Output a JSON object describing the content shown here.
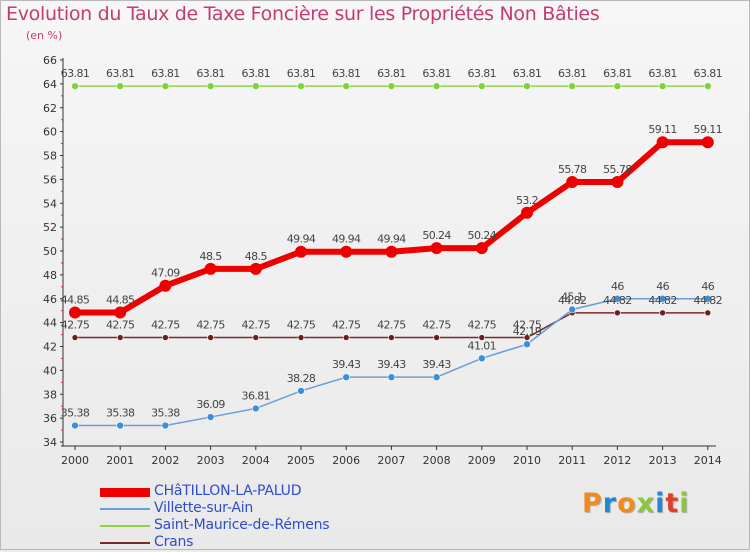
{
  "title": "Evolution du Taux de Taxe Foncière sur les Propriétés Non Bâties",
  "subtitle": "(en %)",
  "logo": {
    "text": "Proxiti",
    "letters": [
      "P",
      "r",
      "o",
      "x",
      "i",
      "t",
      "i"
    ]
  },
  "chart_data": {
    "type": "line",
    "title": "Evolution du Taux de Taxe Foncière sur les Propriétés Non Bâties",
    "ylabel": "(en %)",
    "xlabel": "",
    "grid": false,
    "ylim": [
      34,
      66
    ],
    "yticks": [
      "34",
      "36",
      "38",
      "40",
      "42",
      "44",
      "46",
      "48",
      "50",
      "52",
      "54",
      "56",
      "58",
      "60",
      "62",
      "64",
      "66"
    ],
    "categories": [
      "2000",
      "2001",
      "2002",
      "2003",
      "2004",
      "2005",
      "2006",
      "2007",
      "2008",
      "2009",
      "2010",
      "2011",
      "2012",
      "2013",
      "2014"
    ],
    "legend_position": "bottom-left",
    "series": [
      {
        "name": "CHâTILLON-LA-PALUD",
        "color": "#ee0000",
        "values": [
          44.85,
          44.85,
          47.09,
          48.5,
          48.5,
          49.94,
          49.94,
          49.94,
          50.24,
          50.24,
          53.2,
          55.78,
          55.78,
          59.11,
          59.11
        ],
        "labels": [
          "44.85",
          "44.85",
          "47.09",
          "48.5",
          "48.5",
          "49.94",
          "49.94",
          "49.94",
          "50.24",
          "50.24",
          "53.2",
          "55.78",
          "55.78",
          "59.11",
          "59.11"
        ]
      },
      {
        "name": "Villette-sur-Ain",
        "color": "#6a9ed4",
        "values": [
          35.38,
          35.38,
          35.38,
          36.09,
          36.81,
          38.28,
          39.43,
          39.43,
          39.43,
          41.01,
          42.19,
          45.1,
          46,
          46,
          46
        ],
        "labels": [
          "35.38",
          "35.38",
          "35.38",
          "36.09",
          "36.81",
          "38.28",
          "39.43",
          "39.43",
          "39.43",
          "41.01",
          "42.19",
          "45.1",
          "46",
          "46",
          "46"
        ]
      },
      {
        "name": "Saint-Maurice-de-Rémens",
        "color": "#8fd24a",
        "values": [
          63.81,
          63.81,
          63.81,
          63.81,
          63.81,
          63.81,
          63.81,
          63.81,
          63.81,
          63.81,
          63.81,
          63.81,
          63.81,
          63.81,
          63.81
        ],
        "labels": [
          "63.81",
          "63.81",
          "63.81",
          "63.81",
          "63.81",
          "63.81",
          "63.81",
          "63.81",
          "63.81",
          "63.81",
          "63.81",
          "63.81",
          "63.81",
          "63.81",
          "63.81"
        ]
      },
      {
        "name": "Crans",
        "color": "#7a2a2a",
        "values": [
          42.75,
          42.75,
          42.75,
          42.75,
          42.75,
          42.75,
          42.75,
          42.75,
          42.75,
          42.75,
          42.75,
          44.82,
          44.82,
          44.82,
          44.82
        ],
        "labels": [
          "42.75",
          "42.75",
          "42.75",
          "42.75",
          "42.75",
          "42.75",
          "42.75",
          "42.75",
          "42.75",
          "42.75",
          "42.75",
          "44.82",
          "44.82",
          "44.82",
          "44.82"
        ]
      }
    ]
  }
}
